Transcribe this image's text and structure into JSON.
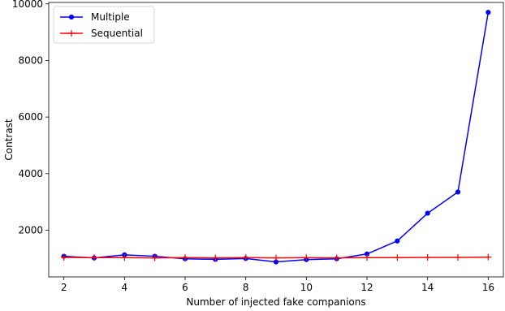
{
  "chart_data": {
    "type": "line",
    "title": "",
    "xlabel": "Number of injected fake companions",
    "ylabel": "Contrast",
    "x": [
      2,
      3,
      4,
      5,
      6,
      7,
      8,
      9,
      10,
      11,
      12,
      13,
      14,
      15,
      16
    ],
    "xlim": [
      1.5,
      16.5
    ],
    "ylim": [
      350,
      10050
    ],
    "xticks": [
      2,
      4,
      6,
      8,
      10,
      12,
      14,
      16
    ],
    "yticks": [
      2000,
      4000,
      6000,
      8000,
      10000
    ],
    "grid": false,
    "legend_position": "top-left",
    "series": [
      {
        "name": "Multiple",
        "color": "#0000ff",
        "marker": "circle",
        "values": [
          1080,
          1020,
          1130,
          1080,
          990,
          970,
          1000,
          880,
          960,
          990,
          1160,
          1620,
          2600,
          3350,
          9700
        ]
      },
      {
        "name": "Sequential",
        "color": "#ff0000",
        "marker": "plus",
        "values": [
          1040,
          1030,
          1030,
          1020,
          1030,
          1020,
          1030,
          1020,
          1030,
          1020,
          1030,
          1030,
          1040,
          1040,
          1050
        ]
      }
    ]
  }
}
